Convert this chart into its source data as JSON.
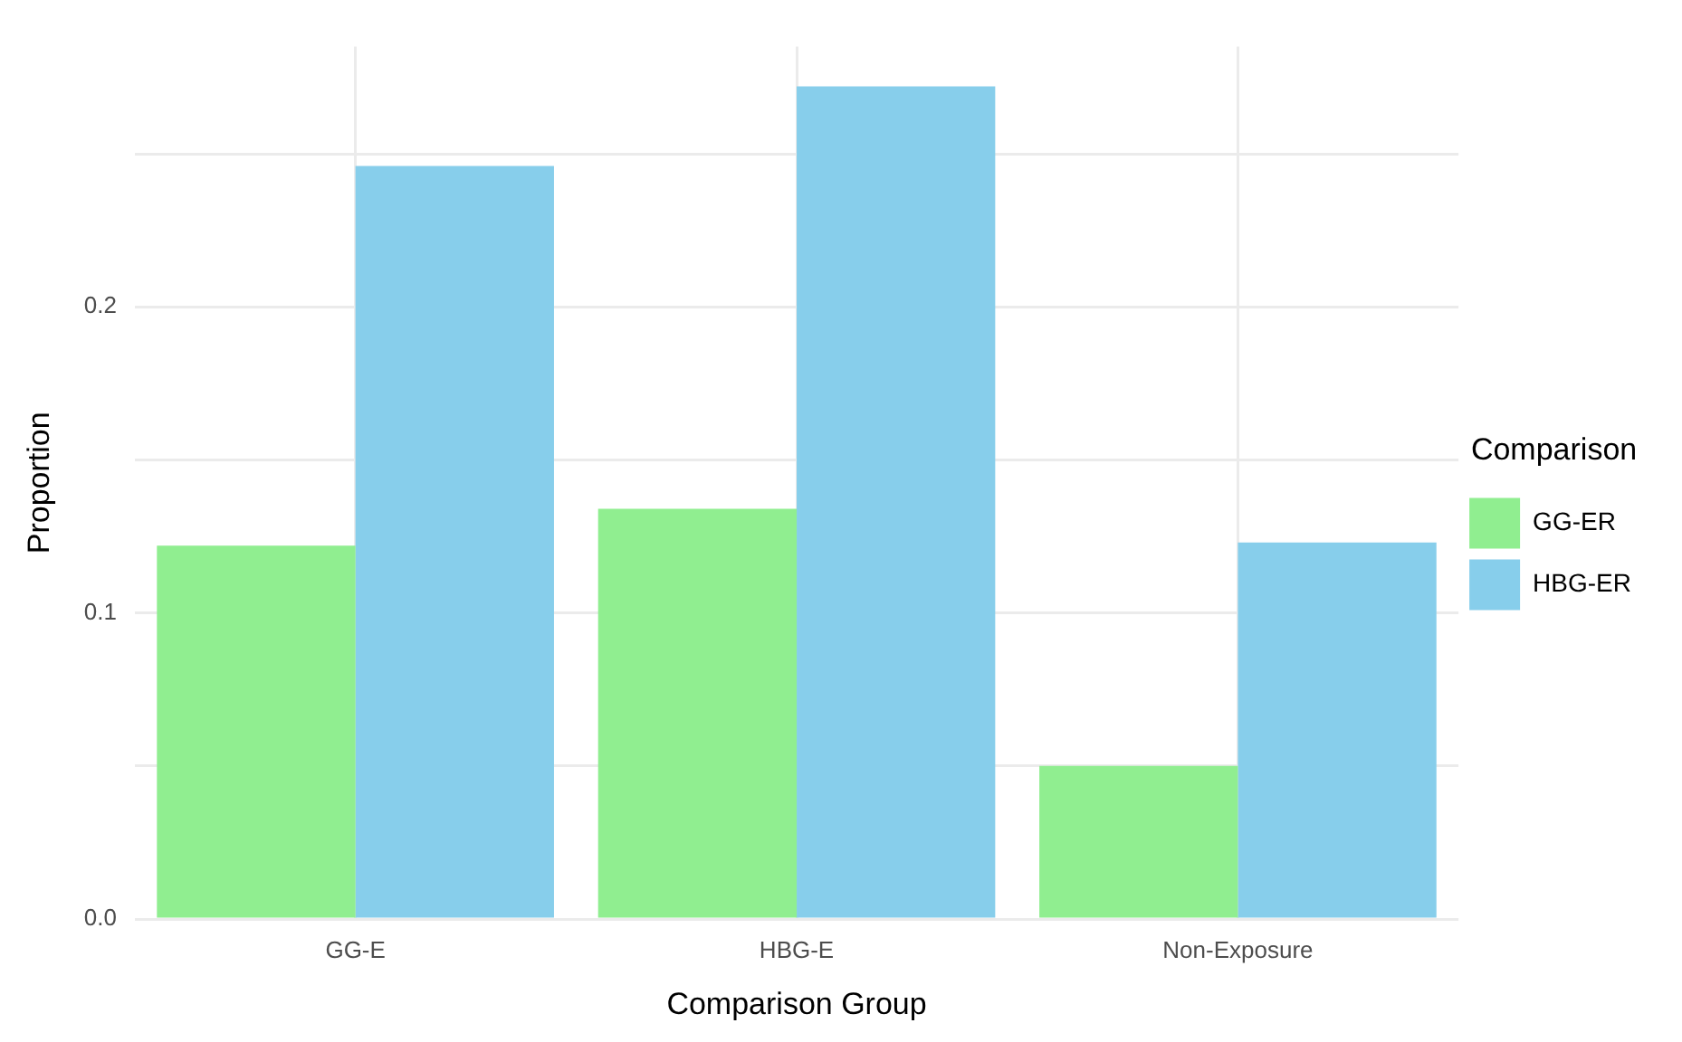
{
  "chart_data": {
    "type": "bar",
    "xlabel": "Comparison Group",
    "ylabel": "Proportion",
    "legend_title": "Comparison",
    "categories": [
      "GG-E",
      "HBG-E",
      "Non-Exposure"
    ],
    "series": [
      {
        "name": "GG-ER",
        "color": "#90ee90",
        "values": [
          0.122,
          0.134,
          0.05
        ]
      },
      {
        "name": "HBG-ER",
        "color": "#87ceeb",
        "values": [
          0.246,
          0.272,
          0.123
        ]
      }
    ],
    "ylim": [
      0,
      0.285
    ],
    "yticks": [
      {
        "value": 0,
        "label": "0.0"
      },
      {
        "value": 0.05,
        "label": null
      },
      0.1,
      {
        "value": 0.15,
        "label": null
      },
      0.2,
      {
        "value": 0.25,
        "label": null
      }
    ],
    "grid": true,
    "legend": "right"
  }
}
